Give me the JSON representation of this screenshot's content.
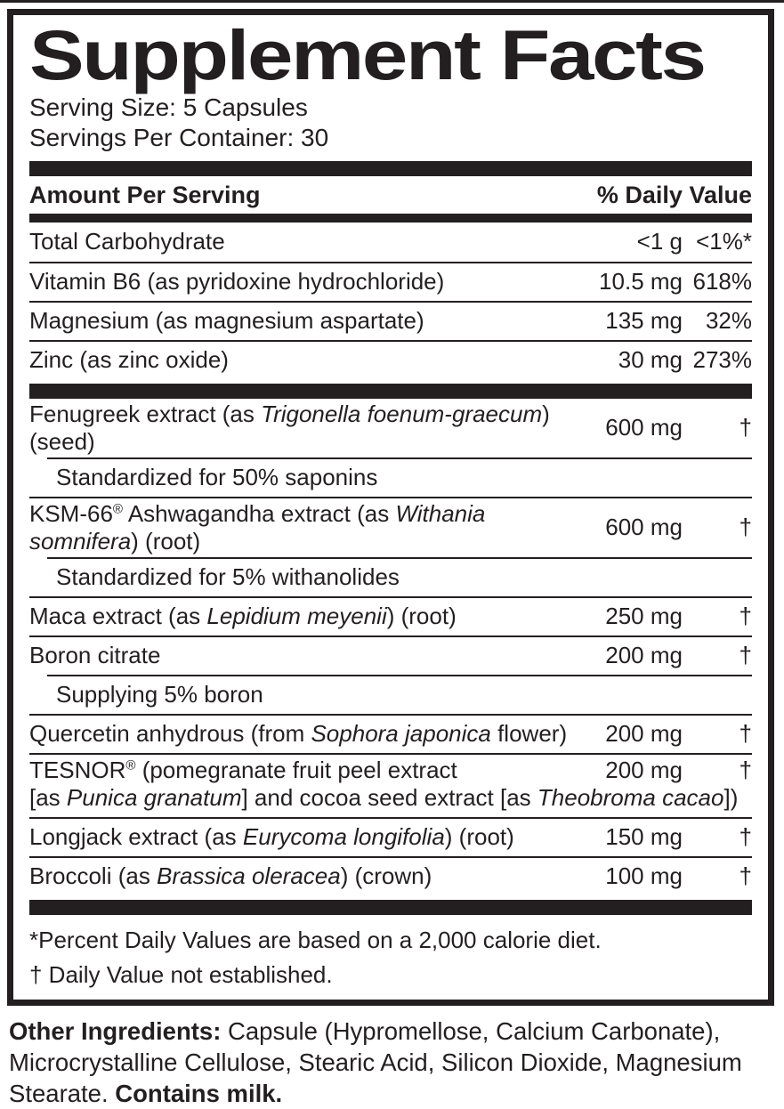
{
  "title": "Supplement Facts",
  "serving": {
    "size": "Serving Size: 5 Capsules",
    "per_container": "Servings Per Container: 30"
  },
  "columns": {
    "amount_header": "Amount Per Serving",
    "daily_value_header": "% Daily Value"
  },
  "rows": [
    {
      "type": "main",
      "first": true,
      "parts": [
        {
          "t": "Total Carbohydrate"
        }
      ],
      "amount": "<1 g",
      "dv": "<1%*"
    },
    {
      "type": "main",
      "parts": [
        {
          "t": "Vitamin B6 (as pyridoxine hydrochloride)"
        }
      ],
      "amount": "10.5 mg",
      "dv": "618%"
    },
    {
      "type": "main",
      "parts": [
        {
          "t": "Magnesium (as magnesium aspartate)"
        }
      ],
      "amount": "135 mg",
      "dv": "32%"
    },
    {
      "type": "main",
      "parts": [
        {
          "t": "Zinc (as zinc oxide)"
        }
      ],
      "amount": "30 mg",
      "dv": "273%"
    },
    {
      "type": "bar"
    },
    {
      "type": "main",
      "first": true,
      "parts": [
        {
          "t": "Fenugreek extract (as "
        },
        {
          "t": "Trigonella foenum-graecum",
          "i": true
        },
        {
          "t": ") (seed)"
        }
      ],
      "amount": "600 mg",
      "dv": "†"
    },
    {
      "type": "sub",
      "parts": [
        {
          "t": "Standardized for 50% saponins"
        }
      ]
    },
    {
      "type": "main",
      "parts": [
        {
          "t": "KSM-66"
        },
        {
          "t": "®",
          "s": true
        },
        {
          "t": " Ashwagandha extract (as "
        },
        {
          "t": "Withania somnifera",
          "i": true
        },
        {
          "t": ") (root)"
        }
      ],
      "amount": "600 mg",
      "dv": "†"
    },
    {
      "type": "sub",
      "parts": [
        {
          "t": "Standardized for 5% withanolides"
        }
      ]
    },
    {
      "type": "main",
      "parts": [
        {
          "t": "Maca extract (as "
        },
        {
          "t": "Lepidium meyenii",
          "i": true
        },
        {
          "t": ") (root)"
        }
      ],
      "amount": "250 mg",
      "dv": "†"
    },
    {
      "type": "main",
      "parts": [
        {
          "t": "Boron citrate"
        }
      ],
      "amount": "200 mg",
      "dv": "†"
    },
    {
      "type": "sub",
      "parts": [
        {
          "t": "Supplying 5% boron"
        }
      ]
    },
    {
      "type": "main",
      "parts": [
        {
          "t": "Quercetin anhydrous (from "
        },
        {
          "t": "Sophora japonica",
          "i": true
        },
        {
          "t": " flower)"
        }
      ],
      "amount": "200 mg",
      "dv": "†"
    },
    {
      "type": "main",
      "twoline": true,
      "parts": [
        {
          "t": "TESNOR"
        },
        {
          "t": "®",
          "s": true
        },
        {
          "t": " (pomegranate fruit peel extract"
        }
      ],
      "parts2": [
        {
          "t": "[as "
        },
        {
          "t": "Punica granatum",
          "i": true
        },
        {
          "t": "] and cocoa seed extract [as "
        },
        {
          "t": "Theobroma cacao",
          "i": true
        },
        {
          "t": "])"
        }
      ],
      "amount": "200 mg",
      "dv": "†"
    },
    {
      "type": "main",
      "parts": [
        {
          "t": "Longjack extract (as "
        },
        {
          "t": "Eurycoma longifolia",
          "i": true
        },
        {
          "t": ") (root)"
        }
      ],
      "amount": "150 mg",
      "dv": "†"
    },
    {
      "type": "main",
      "parts": [
        {
          "t": "Broccoli (as "
        },
        {
          "t": "Brassica oleracea",
          "i": true
        },
        {
          "t": ") (crown)"
        }
      ],
      "amount": "100 mg",
      "dv": "†"
    },
    {
      "type": "bar"
    }
  ],
  "footnotes": [
    "*Percent Daily Values are based on a 2,000 calorie diet.",
    "† Daily Value not established."
  ],
  "other_ingredients": {
    "parts": [
      {
        "t": "Other Ingredients: ",
        "b": true
      },
      {
        "t": "Capsule (Hypromellose, Calcium Carbonate), Microcrystalline Cellulose, Stearic Acid, Silicon Dioxide, Magnesium Stearate. "
      },
      {
        "t": "Contains milk.",
        "b": true
      }
    ]
  },
  "colors": {
    "ink": "#231f20",
    "background": "#ffffff"
  }
}
